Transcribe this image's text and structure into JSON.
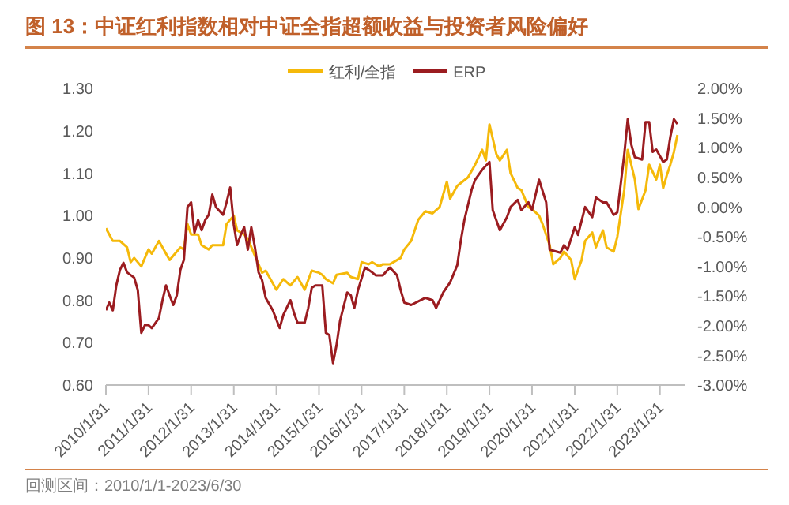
{
  "chart_data": {
    "type": "line",
    "title": "图 13：中证红利指数相对中证全指超额收益与投资者风险偏好",
    "annotations": [
      "回测区间：2010/1/1-2023/6/30"
    ],
    "legend": "top",
    "marker": "none",
    "line_style": "solid",
    "grid": false,
    "xlim": [
      "2010-01",
      "2023-08"
    ],
    "xticks": [
      {
        "value": "2010-01-31",
        "label": "2010/1/31"
      },
      {
        "value": "2011-01-31",
        "label": "2011/1/31"
      },
      {
        "value": "2012-01-31",
        "label": "2012/1/31"
      },
      {
        "value": "2013-01-31",
        "label": "2013/1/31"
      },
      {
        "value": "2014-01-31",
        "label": "2014/1/31"
      },
      {
        "value": "2015-01-31",
        "label": "2015/1/31"
      },
      {
        "value": "2016-01-31",
        "label": "2016/1/31"
      },
      {
        "value": "2017-01-31",
        "label": "2017/1/31"
      },
      {
        "value": "2018-01-31",
        "label": "2018/1/31"
      },
      {
        "value": "2019-01-31",
        "label": "2019/1/31"
      },
      {
        "value": "2020-01-31",
        "label": "2020/1/31"
      },
      {
        "value": "2021-01-31",
        "label": "2021/1/31"
      },
      {
        "value": "2022-01-31",
        "label": "2022/1/31"
      },
      {
        "value": "2023-01-31",
        "label": "2023/1/31"
      }
    ],
    "ylim": [
      0.6,
      1.3
    ],
    "yticks": [
      {
        "value": 0.6,
        "label": "0.60"
      },
      {
        "value": 0.7,
        "label": "0.70"
      },
      {
        "value": 0.8,
        "label": "0.80"
      },
      {
        "value": 0.9,
        "label": "0.90"
      },
      {
        "value": 1.0,
        "label": "1.00"
      },
      {
        "value": 1.1,
        "label": "1.10"
      },
      {
        "value": 1.2,
        "label": "1.20"
      },
      {
        "value": 1.3,
        "label": "1.30"
      }
    ],
    "y2lim": [
      -3,
      2
    ],
    "y2ticks": [
      {
        "value": -3,
        "label": "-3.00%"
      },
      {
        "value": -2.5,
        "label": "-2.50%"
      },
      {
        "value": -2,
        "label": "-2.00%"
      },
      {
        "value": -1.5,
        "label": "-1.50%"
      },
      {
        "value": -1,
        "label": "-1.00%"
      },
      {
        "value": -0.5,
        "label": "-0.50%"
      },
      {
        "value": 0,
        "label": "0.00%"
      },
      {
        "value": 0.5,
        "label": "0.50%"
      },
      {
        "value": 1,
        "label": "1.00%"
      },
      {
        "value": 1.5,
        "label": "1.50%"
      },
      {
        "value": 2,
        "label": "2.00%"
      }
    ],
    "series": [
      {
        "name": "红利/全指",
        "color": "#f5b90a",
        "x": [
          "2010-01",
          "2010-03",
          "2010-05",
          "2010-07",
          "2010-08",
          "2010-09",
          "2010-11",
          "2011-01",
          "2011-02",
          "2011-04",
          "2011-06",
          "2011-07",
          "2011-10",
          "2011-11",
          "2011-12",
          "2012-01",
          "2012-03",
          "2012-04",
          "2012-06",
          "2012-07",
          "2012-10",
          "2012-11",
          "2013-01",
          "2013-02",
          "2013-04",
          "2013-05",
          "2013-07",
          "2013-09",
          "2013-10",
          "2013-12",
          "2014-01",
          "2014-03",
          "2014-05",
          "2014-07",
          "2014-09",
          "2014-11",
          "2015-01",
          "2015-02",
          "2015-03",
          "2015-05",
          "2015-06",
          "2015-09",
          "2015-10",
          "2015-12",
          "2016-01",
          "2016-03",
          "2016-04",
          "2016-06",
          "2016-07",
          "2016-09",
          "2016-12",
          "2017-01",
          "2017-03",
          "2017-05",
          "2017-07",
          "2017-09",
          "2017-11",
          "2018-01",
          "2018-02",
          "2018-04",
          "2018-07",
          "2018-09",
          "2018-11",
          "2018-12",
          "2019-01",
          "2019-03",
          "2019-04",
          "2019-06",
          "2019-07",
          "2019-09",
          "2019-10",
          "2019-12",
          "2020-01",
          "2020-03",
          "2020-04",
          "2020-06",
          "2020-07",
          "2020-09",
          "2020-10",
          "2020-12",
          "2021-01",
          "2021-03",
          "2021-04",
          "2021-06",
          "2021-07",
          "2021-09",
          "2021-10",
          "2021-12",
          "2022-01",
          "2022-03",
          "2022-04",
          "2022-06",
          "2022-07",
          "2022-09",
          "2022-10",
          "2022-12",
          "2023-01",
          "2023-02",
          "2023-03",
          "2023-04",
          "2023-05",
          "2023-06"
        ],
        "values": [
          0.97,
          0.94,
          0.94,
          0.925,
          0.89,
          0.9,
          0.88,
          0.92,
          0.91,
          0.94,
          0.91,
          0.895,
          0.925,
          0.92,
          0.98,
          0.955,
          0.955,
          0.93,
          0.92,
          0.93,
          0.93,
          0.98,
          1.0,
          0.965,
          0.955,
          0.945,
          0.905,
          0.865,
          0.87,
          0.84,
          0.825,
          0.85,
          0.835,
          0.855,
          0.825,
          0.87,
          0.865,
          0.86,
          0.85,
          0.84,
          0.86,
          0.865,
          0.855,
          0.85,
          0.89,
          0.885,
          0.89,
          0.88,
          0.885,
          0.885,
          0.9,
          0.92,
          0.94,
          0.99,
          1.01,
          1.005,
          1.02,
          1.08,
          1.04,
          1.07,
          1.09,
          1.12,
          1.155,
          1.13,
          1.215,
          1.145,
          1.13,
          1.155,
          1.1,
          1.065,
          1.06,
          1.02,
          1.015,
          1.0,
          0.98,
          0.93,
          0.885,
          0.9,
          0.915,
          0.895,
          0.85,
          0.895,
          0.94,
          0.96,
          0.925,
          0.965,
          0.925,
          0.915,
          0.95,
          1.06,
          1.155,
          1.085,
          1.015,
          1.06,
          1.12,
          1.085,
          1.12,
          1.065,
          1.095,
          1.12,
          1.15,
          1.19
        ]
      },
      {
        "name": "ERP",
        "color": "#9b1c20",
        "axis": "y2",
        "x": [
          "2010-01",
          "2010-02",
          "2010-03",
          "2010-04",
          "2010-05",
          "2010-06",
          "2010-07",
          "2010-09",
          "2010-10",
          "2010-11",
          "2010-12",
          "2011-01",
          "2011-02",
          "2011-04",
          "2011-05",
          "2011-06",
          "2011-07",
          "2011-08",
          "2011-09",
          "2011-10",
          "2011-11",
          "2011-12",
          "2012-01",
          "2012-02",
          "2012-03",
          "2012-04",
          "2012-05",
          "2012-06",
          "2012-07",
          "2012-08",
          "2012-10",
          "2012-11",
          "2012-12",
          "2013-01",
          "2013-02",
          "2013-03",
          "2013-04",
          "2013-05",
          "2013-06",
          "2013-07",
          "2013-08",
          "2013-09",
          "2013-10",
          "2013-12",
          "2014-02",
          "2014-03",
          "2014-05",
          "2014-06",
          "2014-07",
          "2014-09",
          "2014-10",
          "2014-11",
          "2014-12",
          "2015-02",
          "2015-03",
          "2015-04",
          "2015-05",
          "2015-06",
          "2015-07",
          "2015-09",
          "2015-10",
          "2015-11",
          "2015-12",
          "2016-02",
          "2016-03",
          "2016-04",
          "2016-05",
          "2016-07",
          "2016-09",
          "2016-11",
          "2016-12",
          "2017-01",
          "2017-03",
          "2017-07",
          "2017-09",
          "2017-10",
          "2017-12",
          "2018-02",
          "2018-04",
          "2018-05",
          "2018-06",
          "2018-08",
          "2018-09",
          "2018-11",
          "2019-01",
          "2019-02",
          "2019-04",
          "2019-06",
          "2019-07",
          "2019-09",
          "2019-10",
          "2019-12",
          "2020-01",
          "2020-03",
          "2020-05",
          "2020-06",
          "2020-09",
          "2020-10",
          "2020-11",
          "2021-01",
          "2021-02",
          "2021-04",
          "2021-06",
          "2021-07",
          "2021-09",
          "2021-10",
          "2021-12",
          "2022-01",
          "2022-03",
          "2022-04",
          "2022-05",
          "2022-06",
          "2022-08",
          "2022-09",
          "2022-10",
          "2022-11",
          "2022-12",
          "2023-02",
          "2023-03",
          "2023-04",
          "2023-05",
          "2023-06"
        ],
        "values": [
          -1.74,
          -1.61,
          -1.74,
          -1.32,
          -1.06,
          -0.94,
          -1.1,
          -1.19,
          -1.4,
          -2.12,
          -1.99,
          -1.99,
          -2.04,
          -1.87,
          -1.57,
          -1.32,
          -1.49,
          -1.65,
          -1.49,
          -1.06,
          -0.89,
          0.0,
          0.08,
          -0.43,
          -0.22,
          -0.39,
          -0.22,
          -0.13,
          0.21,
          0.0,
          -0.13,
          0.08,
          0.33,
          -0.3,
          -0.64,
          -0.47,
          -0.34,
          -0.72,
          -0.34,
          -0.68,
          -1.1,
          -1.23,
          -1.53,
          -1.74,
          -2.04,
          -1.82,
          -1.57,
          -1.78,
          -1.95,
          -1.95,
          -1.7,
          -1.36,
          -1.32,
          -1.32,
          -2.12,
          -2.16,
          -2.63,
          -2.33,
          -1.91,
          -1.44,
          -1.49,
          -1.7,
          -1.4,
          -1.02,
          -1.06,
          -1.1,
          -1.15,
          -1.15,
          -1.02,
          -1.15,
          -1.4,
          -1.61,
          -1.65,
          -1.53,
          -1.57,
          -1.7,
          -1.44,
          -1.27,
          -0.98,
          -0.56,
          -0.22,
          0.29,
          0.46,
          0.63,
          0.76,
          -0.05,
          -0.39,
          -0.17,
          0.0,
          0.12,
          -0.05,
          0.08,
          -0.05,
          0.46,
          0.08,
          -0.72,
          -0.77,
          -0.64,
          -0.72,
          -0.34,
          -0.47,
          0.0,
          -0.17,
          0.16,
          0.08,
          0.08,
          -0.13,
          -0.09,
          0.88,
          1.48,
          1.05,
          0.84,
          0.8,
          1.43,
          1.43,
          0.93,
          0.97,
          0.76,
          0.8,
          1.18,
          1.48,
          1.4
        ]
      }
    ]
  }
}
